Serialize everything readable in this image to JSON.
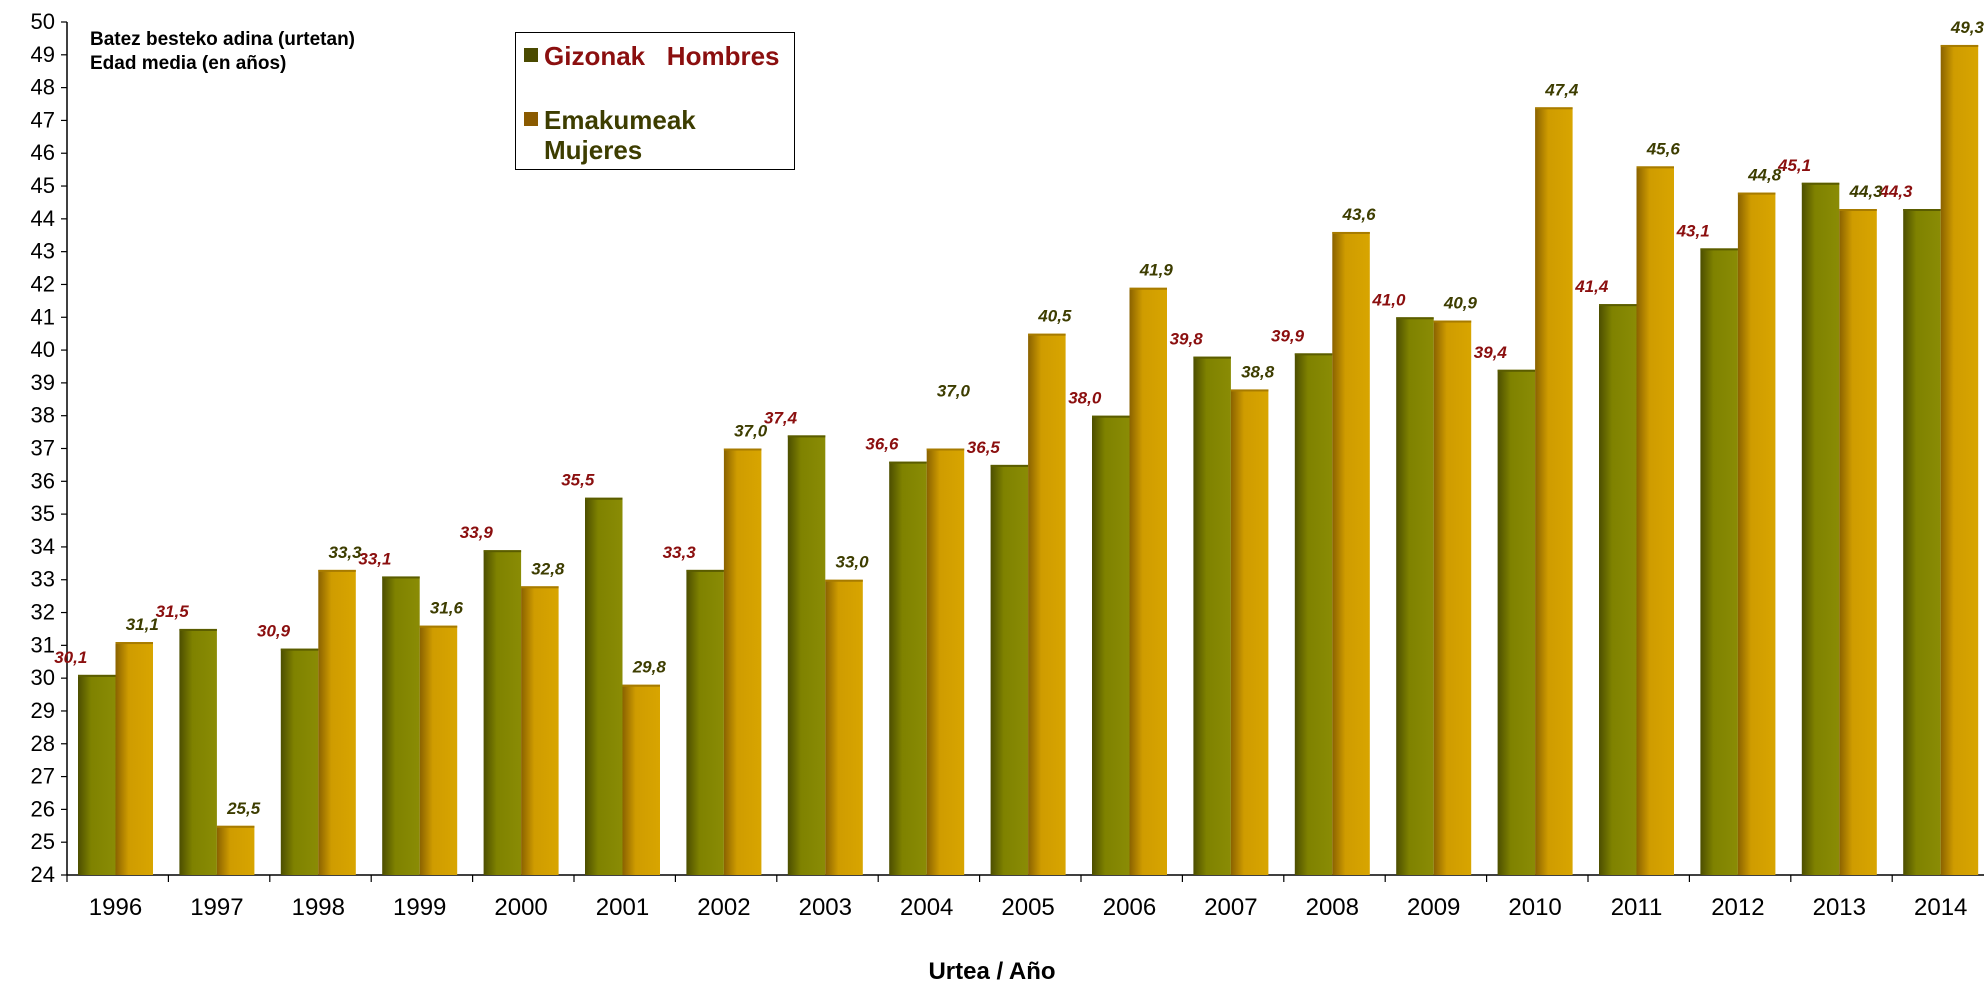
{
  "chart_data": {
    "type": "bar",
    "ylabel_lines": [
      "Batez besteko adina (urtetan)",
      "Edad media (en años)"
    ],
    "xlabel": "Urtea / Año",
    "ylim": [
      24,
      50
    ],
    "y_ticks": [
      24,
      25,
      26,
      27,
      28,
      29,
      30,
      31,
      32,
      33,
      34,
      35,
      36,
      37,
      38,
      39,
      40,
      41,
      42,
      43,
      44,
      45,
      46,
      47,
      48,
      49,
      50
    ],
    "categories": [
      "1996",
      "1997",
      "1998",
      "1999",
      "2000",
      "2001",
      "2002",
      "2003",
      "2004",
      "2005",
      "2006",
      "2007",
      "2008",
      "2009",
      "2010",
      "2011",
      "2012",
      "2013",
      "2014"
    ],
    "series": [
      {
        "name": "Gizonak   Hombres",
        "color": "#7b7d00",
        "values": [
          30.1,
          31.5,
          30.9,
          33.1,
          33.9,
          35.5,
          33.3,
          37.4,
          36.6,
          36.5,
          38.0,
          39.8,
          39.9,
          41.0,
          39.4,
          41.4,
          43.1,
          45.1,
          44.3
        ],
        "labels": [
          "30,1",
          "31,5",
          "30,9",
          "33,1",
          "33,9",
          "35,5",
          "33,3",
          "37,4",
          "36,6",
          "36,5",
          "38,0",
          "39,8",
          "39,9",
          "41,0",
          "39,4",
          "41,4",
          "43,1",
          "45,1",
          "44,3"
        ],
        "label_color": "#8b0f0f"
      },
      {
        "name": "Emakumeak\nMujeres",
        "color": "#cc9a00",
        "values": [
          31.1,
          25.5,
          33.3,
          31.6,
          32.8,
          29.8,
          37.0,
          33.0,
          37.0,
          40.5,
          41.9,
          38.8,
          43.6,
          40.9,
          47.4,
          45.6,
          44.8,
          44.3,
          49.3
        ],
        "labels": [
          "31,1",
          "25,5",
          "33,3",
          "31,6",
          "32,8",
          "29,8",
          "37,0",
          "33,0",
          "37,0",
          "40,5",
          "41,9",
          "38,8",
          "43,6",
          "40,9",
          "47,4",
          "45,6",
          "44,8",
          "44,3",
          "49,3"
        ],
        "label_color": "#3d3d00"
      }
    ],
    "legend": {
      "men_label": "Gizonak   Hombres",
      "women_label_line1": "Emakumeak",
      "women_label_line2": "Mujeres",
      "men_swatch": "#4a4a00",
      "women_swatch": "#8a5a00",
      "placement": "top-left"
    },
    "grid": false
  }
}
